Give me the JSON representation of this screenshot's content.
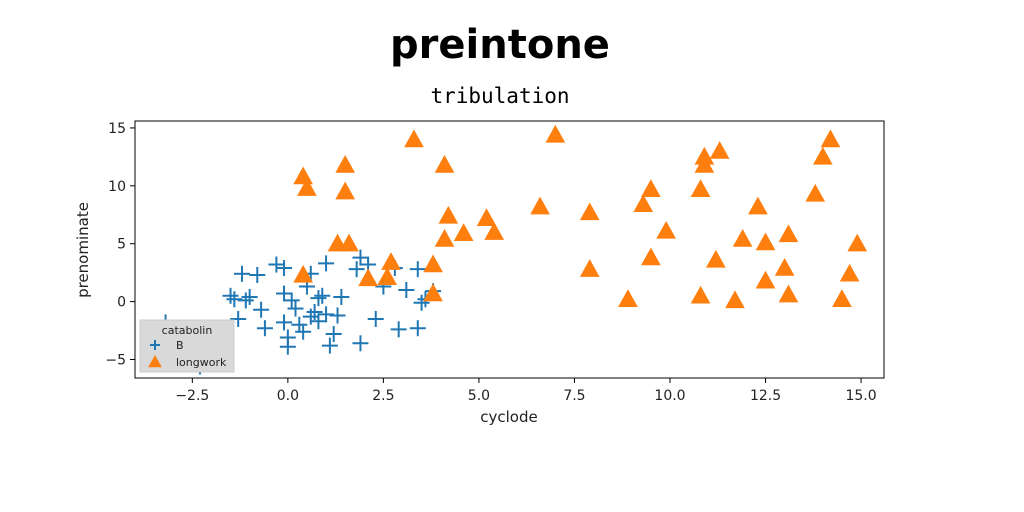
{
  "title": "preintone",
  "subtitle": "tribulation",
  "chart_data": {
    "type": "scatter",
    "title": "preintone",
    "subtitle": "tribulation",
    "xlabel": "cyclode",
    "ylabel": "prenominate",
    "xlim": [
      -4.0,
      15.6
    ],
    "ylim": [
      -6.6,
      15.6
    ],
    "xticks": [
      -2.5,
      0.0,
      2.5,
      5.0,
      7.5,
      10.0,
      12.5,
      15.0
    ],
    "xtick_labels": [
      "−2.5",
      "0.0",
      "2.5",
      "5.0",
      "7.5",
      "10.0",
      "12.5",
      "15.0"
    ],
    "yticks": [
      -5,
      0,
      5,
      10,
      15
    ],
    "ytick_labels": [
      "−5",
      "0",
      "5",
      "10",
      "15"
    ],
    "grid": false,
    "legend": {
      "title": "catabolin",
      "position": "lower-left"
    },
    "series": [
      {
        "name": "B",
        "marker": "plus",
        "color": "#1f77b4",
        "points": [
          [
            -3.2,
            -1.8
          ],
          [
            -2.6,
            -4.4
          ],
          [
            -2.3,
            -5.6
          ],
          [
            -1.9,
            -3.3
          ],
          [
            -1.5,
            0.5
          ],
          [
            -1.4,
            0.2
          ],
          [
            -1.3,
            -1.5
          ],
          [
            -1.2,
            2.4
          ],
          [
            -1.1,
            0.1
          ],
          [
            -1.0,
            0.4
          ],
          [
            -0.8,
            2.3
          ],
          [
            -0.7,
            -0.7
          ],
          [
            -0.6,
            -2.3
          ],
          [
            -0.3,
            3.2
          ],
          [
            -0.1,
            2.9
          ],
          [
            -0.1,
            0.7
          ],
          [
            -0.1,
            -1.8
          ],
          [
            0.0,
            -3.1
          ],
          [
            0.0,
            -3.9
          ],
          [
            0.1,
            0.1
          ],
          [
            0.2,
            -0.6
          ],
          [
            0.3,
            -2.0
          ],
          [
            0.4,
            -2.6
          ],
          [
            0.5,
            1.3
          ],
          [
            0.6,
            2.4
          ],
          [
            0.6,
            -1.3
          ],
          [
            0.7,
            -0.9
          ],
          [
            0.8,
            0.3
          ],
          [
            0.8,
            -1.7
          ],
          [
            0.9,
            0.5
          ],
          [
            1.0,
            -1.1
          ],
          [
            1.0,
            3.3
          ],
          [
            1.1,
            -3.8
          ],
          [
            1.2,
            -2.8
          ],
          [
            1.3,
            -1.2
          ],
          [
            1.4,
            0.4
          ],
          [
            1.8,
            2.8
          ],
          [
            1.9,
            3.8
          ],
          [
            1.9,
            -3.6
          ],
          [
            2.1,
            3.2
          ],
          [
            2.3,
            -1.5
          ],
          [
            2.5,
            1.3
          ],
          [
            2.8,
            2.9
          ],
          [
            2.9,
            -2.4
          ],
          [
            3.1,
            1.0
          ],
          [
            3.4,
            -2.3
          ],
          [
            3.4,
            2.8
          ],
          [
            3.5,
            -0.1
          ],
          [
            3.6,
            0.2
          ],
          [
            3.8,
            0.9
          ]
        ]
      },
      {
        "name": "longwork",
        "marker": "triangle",
        "color": "#ff7f0e",
        "points": [
          [
            0.4,
            10.8
          ],
          [
            0.4,
            2.3
          ],
          [
            0.5,
            9.8
          ],
          [
            1.3,
            5.0
          ],
          [
            1.5,
            11.8
          ],
          [
            1.5,
            9.5
          ],
          [
            1.6,
            5.0
          ],
          [
            2.1,
            2.0
          ],
          [
            2.6,
            2.1
          ],
          [
            2.7,
            3.4
          ],
          [
            3.3,
            14.0
          ],
          [
            3.8,
            3.2
          ],
          [
            3.8,
            0.7
          ],
          [
            4.1,
            11.8
          ],
          [
            4.1,
            5.4
          ],
          [
            4.2,
            7.4
          ],
          [
            4.6,
            5.9
          ],
          [
            5.2,
            7.2
          ],
          [
            5.4,
            6.0
          ],
          [
            6.6,
            8.2
          ],
          [
            7.0,
            14.4
          ],
          [
            7.9,
            7.7
          ],
          [
            7.9,
            2.8
          ],
          [
            8.9,
            0.2
          ],
          [
            9.3,
            8.4
          ],
          [
            9.5,
            9.7
          ],
          [
            9.5,
            3.8
          ],
          [
            9.9,
            6.1
          ],
          [
            10.8,
            9.7
          ],
          [
            10.8,
            0.5
          ],
          [
            10.9,
            12.5
          ],
          [
            10.9,
            11.8
          ],
          [
            11.2,
            3.6
          ],
          [
            11.3,
            13.0
          ],
          [
            11.7,
            0.1
          ],
          [
            11.9,
            5.4
          ],
          [
            12.3,
            8.2
          ],
          [
            12.5,
            5.1
          ],
          [
            12.5,
            1.8
          ],
          [
            13.0,
            2.9
          ],
          [
            13.1,
            0.6
          ],
          [
            13.1,
            5.8
          ],
          [
            13.8,
            9.3
          ],
          [
            14.0,
            12.5
          ],
          [
            14.2,
            14.0
          ],
          [
            14.5,
            0.2
          ],
          [
            14.7,
            2.4
          ],
          [
            14.9,
            5.0
          ]
        ]
      }
    ]
  }
}
